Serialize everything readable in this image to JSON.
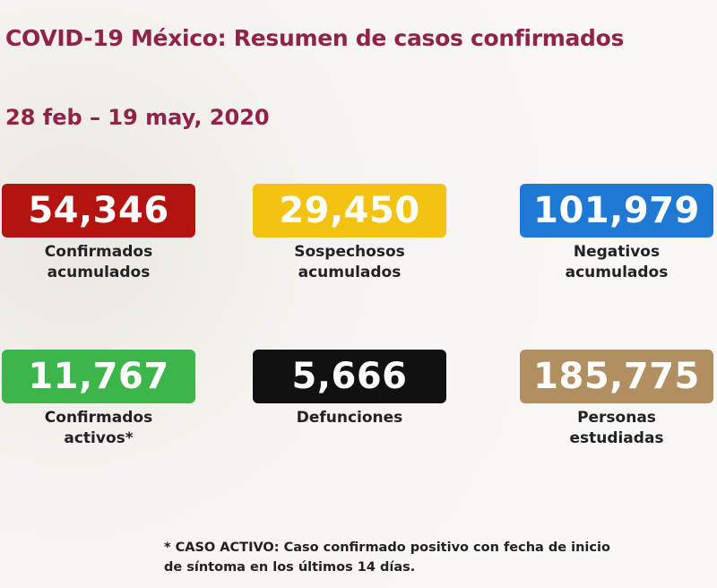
{
  "header": {
    "title": "COVID-19 México: Resumen de casos confirmados",
    "date": "28 feb – 19 may, 2020"
  },
  "cards": [
    {
      "value": "54,346",
      "label": [
        "Confirmados",
        "acumulados"
      ]
    },
    {
      "value": "29,450",
      "label": [
        "Sospechosos",
        "acumulados"
      ]
    },
    {
      "value": "101,979",
      "label": [
        "Negativos",
        "acumulados"
      ]
    },
    {
      "value": "11,767",
      "label": [
        "Confirmados",
        "activos*"
      ]
    },
    {
      "value": "5,666",
      "label": [
        "Defunciones"
      ]
    },
    {
      "value": "185,775",
      "label": [
        "Personas",
        "estudiadas"
      ]
    }
  ],
  "footnote": [
    "* CASO ACTIVO: Caso confirmado positivo con fecha de inicio",
    "de síntoma en los últimos 14 días."
  ]
}
